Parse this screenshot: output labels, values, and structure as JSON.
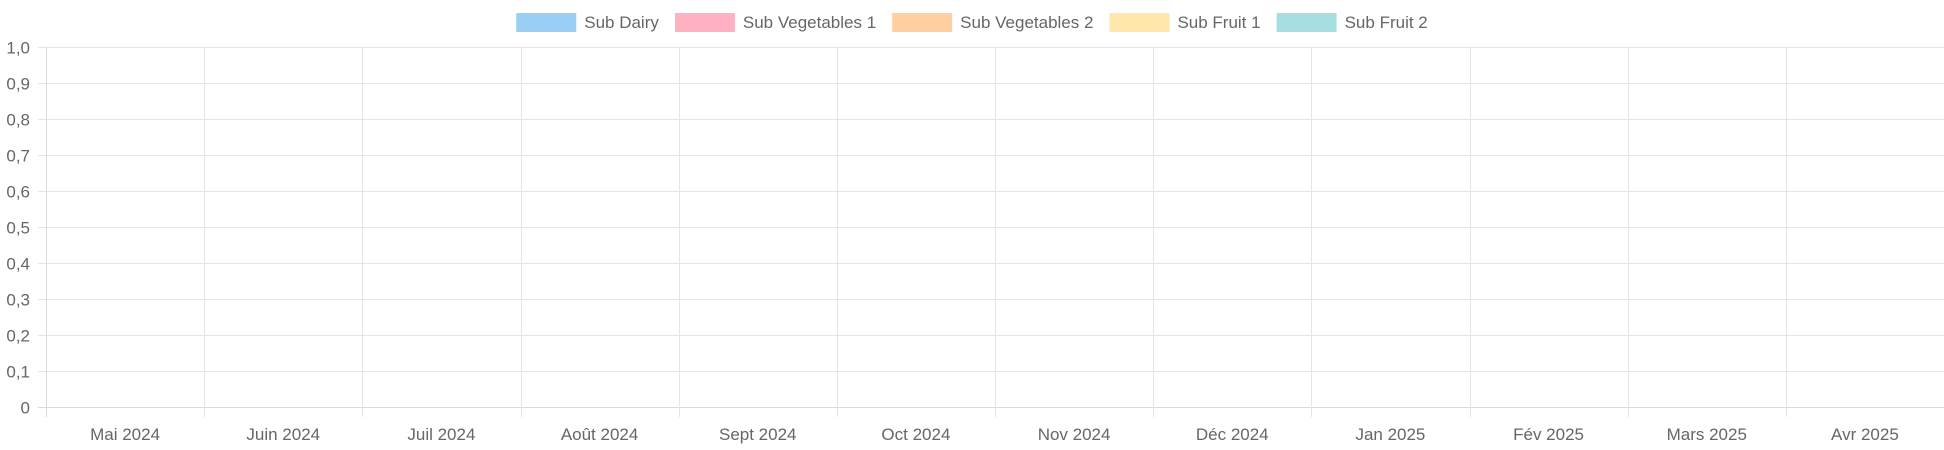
{
  "chart_data": {
    "type": "bar",
    "title": "",
    "xlabel": "",
    "ylabel": "",
    "categories": [
      "Mai 2024",
      "Juin 2024",
      "Juil 2024",
      "Août 2024",
      "Sept 2024",
      "Oct 2024",
      "Nov 2024",
      "Déc 2024",
      "Jan 2025",
      "Fév 2025",
      "Mars 2025",
      "Avr 2025"
    ],
    "ylim": [
      0,
      1
    ],
    "y_ticks": [
      "0",
      "0,1",
      "0,2",
      "0,3",
      "0,4",
      "0,5",
      "0,6",
      "0,7",
      "0,8",
      "0,9",
      "1,0"
    ],
    "grid": true,
    "legend_position": "top-center",
    "series": [
      {
        "name": "Sub Dairy",
        "color": "#9ad0f5",
        "values": [
          0,
          0,
          0,
          0,
          0,
          0,
          0,
          0,
          0,
          0,
          0,
          0
        ]
      },
      {
        "name": "Sub Vegetables 1",
        "color": "#ffb1c1",
        "values": [
          0,
          0,
          0,
          0,
          0,
          0,
          0,
          0,
          0,
          0,
          0,
          0
        ]
      },
      {
        "name": "Sub Vegetables 2",
        "color": "#ffcf9f",
        "values": [
          0,
          0,
          0,
          0,
          0,
          0,
          0,
          0,
          0,
          0,
          0,
          0
        ]
      },
      {
        "name": "Sub Fruit 1",
        "color": "#ffe6aa",
        "values": [
          0,
          0,
          0,
          0,
          0,
          0,
          0,
          0,
          0,
          0,
          0,
          0
        ]
      },
      {
        "name": "Sub Fruit 2",
        "color": "#a5dfdf",
        "values": [
          0,
          0,
          0,
          0,
          0,
          0,
          0,
          0,
          0,
          0,
          0,
          0
        ]
      }
    ]
  }
}
